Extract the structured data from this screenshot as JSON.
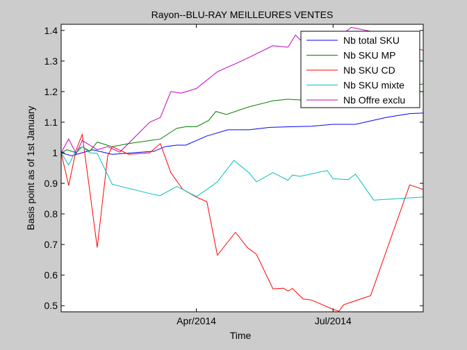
{
  "window": {
    "background": "#cccccc"
  },
  "chart_data": {
    "type": "line",
    "title": "Rayon--BLU-RAY MEILLEURES VENTES",
    "xlabel": "Time",
    "ylabel": "Basis point as of 1st January",
    "xlim": [
      "2014-01-01",
      "2014-08-30"
    ],
    "ylim": [
      0.48,
      1.42
    ],
    "x_ticks": [
      {
        "date": "2014-04-01",
        "label": "Apr/2014"
      },
      {
        "date": "2014-07-01",
        "label": "Jul/2014"
      }
    ],
    "y_ticks": [
      {
        "value": 0.5,
        "label": "0.5"
      },
      {
        "value": 0.6,
        "label": "0.6"
      },
      {
        "value": 0.7,
        "label": "0.7"
      },
      {
        "value": 0.8,
        "label": "0.8"
      },
      {
        "value": 0.9,
        "label": "0.9"
      },
      {
        "value": 1.0,
        "label": "1"
      },
      {
        "value": 1.1,
        "label": "1.1"
      },
      {
        "value": 1.2,
        "label": "1.2"
      },
      {
        "value": 1.3,
        "label": "1.3"
      },
      {
        "value": 1.4,
        "label": "1.4"
      }
    ],
    "grid": false,
    "legend": {
      "position": "top-right"
    },
    "series": [
      {
        "name": "Nb total SKU",
        "color": "#0000ff",
        "points": [
          [
            "2014-01-01",
            1.0
          ],
          [
            "2014-01-08",
            0.99
          ],
          [
            "2014-01-22",
            1.01
          ],
          [
            "2014-02-04",
            0.995
          ],
          [
            "2014-02-18",
            1.0
          ],
          [
            "2014-03-04",
            1.005
          ],
          [
            "2014-03-11",
            1.02
          ],
          [
            "2014-03-19",
            1.025
          ],
          [
            "2014-03-25",
            1.025
          ],
          [
            "2014-04-08",
            1.055
          ],
          [
            "2014-04-22",
            1.075
          ],
          [
            "2014-05-06",
            1.075
          ],
          [
            "2014-05-20",
            1.083
          ],
          [
            "2014-06-03",
            1.085
          ],
          [
            "2014-06-17",
            1.087
          ],
          [
            "2014-07-01",
            1.093
          ],
          [
            "2014-07-16",
            1.093
          ],
          [
            "2014-08-05",
            1.115
          ],
          [
            "2014-08-21",
            1.128
          ],
          [
            "2014-08-30",
            1.13
          ]
        ]
      },
      {
        "name": "Nb SKU MP",
        "color": "#008000",
        "points": [
          [
            "2014-01-01",
            1.0
          ],
          [
            "2014-01-05",
            1.01
          ],
          [
            "2014-01-11",
            1.0
          ],
          [
            "2014-01-15",
            1.02
          ],
          [
            "2014-01-20",
            1.005
          ],
          [
            "2014-01-25",
            1.035
          ],
          [
            "2014-02-04",
            1.02
          ],
          [
            "2014-02-15",
            1.03
          ],
          [
            "2014-03-01",
            1.04
          ],
          [
            "2014-03-08",
            1.045
          ],
          [
            "2014-03-19",
            1.08
          ],
          [
            "2014-03-25",
            1.085
          ],
          [
            "2014-04-01",
            1.085
          ],
          [
            "2014-04-09",
            1.105
          ],
          [
            "2014-04-14",
            1.135
          ],
          [
            "2014-04-21",
            1.125
          ],
          [
            "2014-05-06",
            1.15
          ],
          [
            "2014-05-22",
            1.17
          ],
          [
            "2014-06-01",
            1.175
          ],
          [
            "2014-06-17",
            1.17
          ],
          [
            "2014-08-30",
            1.225
          ]
        ]
      },
      {
        "name": "Nb SKU CD",
        "color": "#ff0000",
        "points": [
          [
            "2014-01-01",
            1.0
          ],
          [
            "2014-01-06",
            0.893
          ],
          [
            "2014-01-11",
            1.01
          ],
          [
            "2014-01-15",
            1.06
          ],
          [
            "2014-01-21",
            0.84
          ],
          [
            "2014-01-25",
            0.69
          ],
          [
            "2014-02-01",
            0.99
          ],
          [
            "2014-02-04",
            1.02
          ],
          [
            "2014-02-15",
            0.995
          ],
          [
            "2014-03-01",
            1.0
          ],
          [
            "2014-03-08",
            1.03
          ],
          [
            "2014-03-15",
            0.935
          ],
          [
            "2014-03-23",
            0.88
          ],
          [
            "2014-04-01",
            0.855
          ],
          [
            "2014-04-08",
            0.84
          ],
          [
            "2014-04-15",
            0.665
          ],
          [
            "2014-04-27",
            0.74
          ],
          [
            "2014-05-05",
            0.69
          ],
          [
            "2014-05-11",
            0.668
          ],
          [
            "2014-05-22",
            0.555
          ],
          [
            "2014-05-29",
            0.557
          ],
          [
            "2014-06-01",
            0.548
          ],
          [
            "2014-06-04",
            0.556
          ],
          [
            "2014-06-11",
            0.522
          ],
          [
            "2014-06-17",
            0.518
          ],
          [
            "2014-07-01",
            0.488
          ],
          [
            "2014-07-05",
            0.482
          ],
          [
            "2014-07-08",
            0.503
          ],
          [
            "2014-07-26",
            0.533
          ],
          [
            "2014-08-21",
            0.895
          ],
          [
            "2014-08-30",
            0.88
          ]
        ]
      },
      {
        "name": "Nb SKU mixte",
        "color": "#00bfbf",
        "points": [
          [
            "2014-01-01",
            1.0
          ],
          [
            "2014-01-06",
            0.96
          ],
          [
            "2014-01-11",
            1.01
          ],
          [
            "2014-01-15",
            1.02
          ],
          [
            "2014-01-20",
            1.0
          ],
          [
            "2014-01-25",
            0.998
          ],
          [
            "2014-02-04",
            0.897
          ],
          [
            "2014-03-04",
            0.863
          ],
          [
            "2014-03-08",
            0.86
          ],
          [
            "2014-03-19",
            0.89
          ],
          [
            "2014-04-01",
            0.857
          ],
          [
            "2014-04-08",
            0.88
          ],
          [
            "2014-04-15",
            0.905
          ],
          [
            "2014-04-26",
            0.975
          ],
          [
            "2014-05-06",
            0.935
          ],
          [
            "2014-05-11",
            0.905
          ],
          [
            "2014-05-22",
            0.935
          ],
          [
            "2014-06-01",
            0.91
          ],
          [
            "2014-06-04",
            0.927
          ],
          [
            "2014-06-09",
            0.923
          ],
          [
            "2014-06-27",
            0.942
          ],
          [
            "2014-07-01",
            0.915
          ],
          [
            "2014-07-11",
            0.912
          ],
          [
            "2014-07-16",
            0.93
          ],
          [
            "2014-07-28",
            0.845
          ],
          [
            "2014-08-30",
            0.855
          ]
        ]
      },
      {
        "name": "Nb Offre exclu",
        "color": "#bf00bf",
        "points": [
          [
            "2014-01-01",
            1.0
          ],
          [
            "2014-01-06",
            1.045
          ],
          [
            "2014-01-11",
            0.997
          ],
          [
            "2014-01-15",
            1.04
          ],
          [
            "2014-01-25",
            1.01
          ],
          [
            "2014-02-01",
            1.02
          ],
          [
            "2014-02-09",
            1.002
          ],
          [
            "2014-03-01",
            1.1
          ],
          [
            "2014-03-08",
            1.115
          ],
          [
            "2014-03-15",
            1.2
          ],
          [
            "2014-03-22",
            1.195
          ],
          [
            "2014-04-01",
            1.21
          ],
          [
            "2014-04-15",
            1.265
          ],
          [
            "2014-05-01",
            1.3
          ],
          [
            "2014-05-22",
            1.35
          ],
          [
            "2014-06-01",
            1.345
          ],
          [
            "2014-06-06",
            1.385
          ],
          [
            "2014-06-14",
            1.345
          ],
          [
            "2014-06-27",
            1.35
          ],
          [
            "2014-07-08",
            1.39
          ],
          [
            "2014-07-13",
            1.41
          ],
          [
            "2014-07-28",
            1.395
          ],
          [
            "2014-08-11",
            1.355
          ],
          [
            "2014-08-30",
            1.335
          ]
        ]
      }
    ]
  }
}
